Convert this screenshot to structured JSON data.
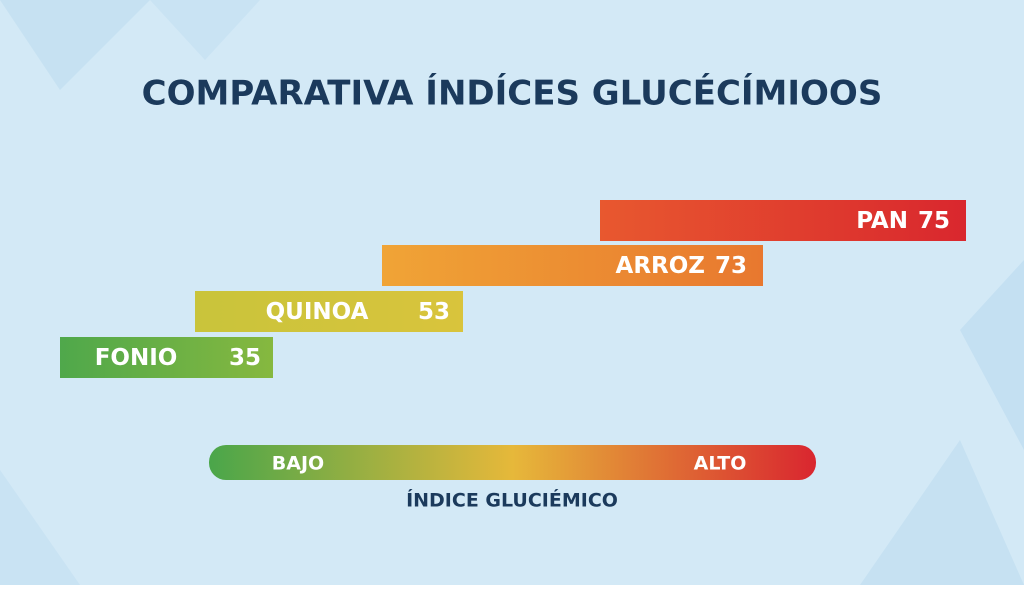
{
  "chart_data": {
    "type": "bar",
    "title": "COMPARATIVA ÍNDÍCES GLUCÉCÍMIOOS",
    "categories": [
      "FONIO",
      "QUINOA",
      "ARROZ",
      "PAN"
    ],
    "values": [
      35,
      53,
      73,
      75
    ],
    "colors": [
      [
        "#4fa84b",
        "#86b83f"
      ],
      [
        "#c9c43b",
        "#d9c43c"
      ],
      [
        "#f0a436",
        "#e8782f"
      ],
      [
        "#e8582f",
        "#d9272e"
      ]
    ],
    "legend": {
      "low": "BAJO",
      "high": "ALTO",
      "label": "ÍNDICE GLUCIÉMICO",
      "colors": [
        "#4aa64a",
        "#e6b83a",
        "#d9262f"
      ]
    }
  }
}
